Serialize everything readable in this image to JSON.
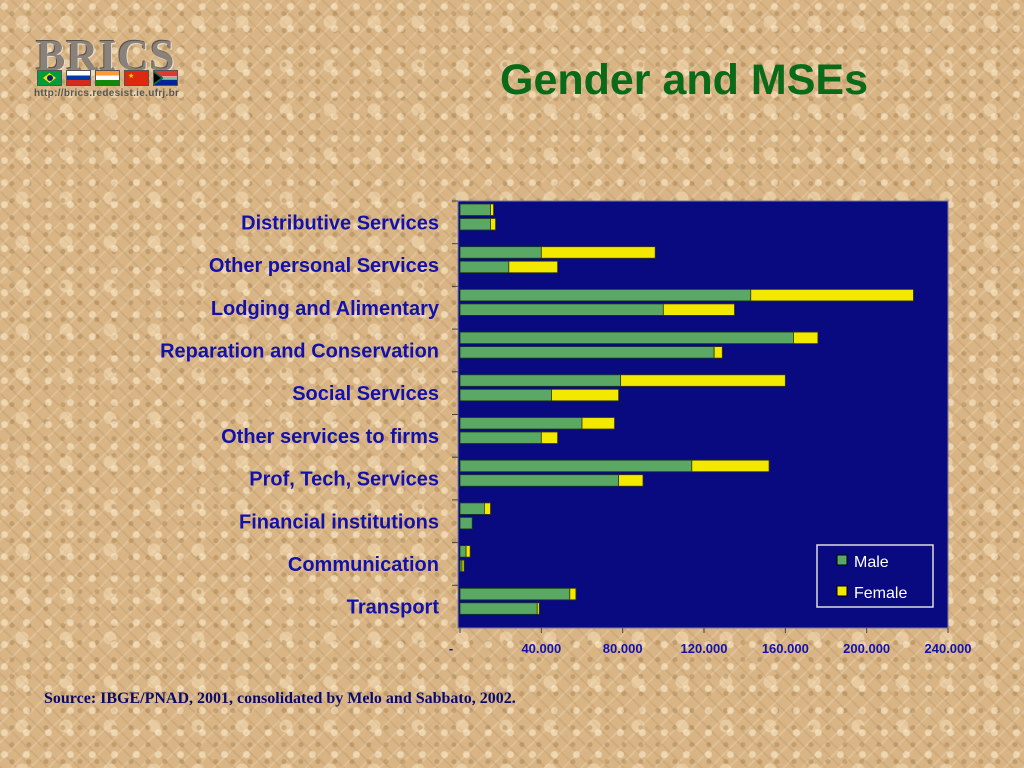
{
  "logo": {
    "text": "BRICS",
    "url": "http://brics.redesist.ie.ufrj.br",
    "flags": [
      {
        "name": "brazil-flag",
        "colors": [
          "#009c3b",
          "#ffdf00",
          "#002776"
        ]
      },
      {
        "name": "russia-flag",
        "colors": [
          "#ffffff",
          "#0039a6",
          "#d52b1e"
        ]
      },
      {
        "name": "india-flag",
        "colors": [
          "#ff9933",
          "#ffffff",
          "#138808"
        ]
      },
      {
        "name": "china-flag",
        "colors": [
          "#de2910",
          "#ffde00"
        ]
      },
      {
        "name": "south-africa-flag",
        "colors": [
          "#007a4d",
          "#ffb612",
          "#de3831",
          "#002395"
        ]
      }
    ]
  },
  "title": "Gender and MSEs",
  "source": "Source: IBGE/PNAD, 2001, consolidated by Melo and Sabbato, 2002.",
  "colors": {
    "plot_bg": "#0a0a80",
    "male": "#5aa864",
    "female": "#f2e800",
    "label": "#1212aa"
  },
  "chart_data": {
    "type": "bar",
    "orientation": "horizontal",
    "stacked": true,
    "categories": [
      "Distributive Services",
      "Other personal Services",
      "Lodging and Alimentary",
      "Reparation and Conservation",
      "Social Services",
      "Other services to firms",
      "Prof, Tech, Services",
      "Financial institutions",
      "Communication",
      "Transport"
    ],
    "bars_per_category": 2,
    "series": [
      {
        "name": "Male",
        "values": [
          [
            15000,
            15000
          ],
          [
            40000,
            24000
          ],
          [
            143000,
            100000
          ],
          [
            164000,
            125000
          ],
          [
            79000,
            45000
          ],
          [
            60000,
            40000
          ],
          [
            114000,
            78000
          ],
          [
            12000,
            6000
          ],
          [
            3000,
            1000
          ],
          [
            54000,
            38000
          ]
        ]
      },
      {
        "name": "Female",
        "values": [
          [
            1500,
            2500
          ],
          [
            56000,
            24000
          ],
          [
            80000,
            35000
          ],
          [
            12000,
            4000
          ],
          [
            81000,
            33000
          ],
          [
            16000,
            8000
          ],
          [
            38000,
            12000
          ],
          [
            3000,
            0
          ],
          [
            2000,
            1000
          ],
          [
            3000,
            1000
          ]
        ]
      }
    ],
    "x_ticks": [
      "-",
      "40.000",
      "80.000",
      "120.000",
      "160.000",
      "200.000",
      "240.000"
    ],
    "xlim": [
      0,
      240000
    ],
    "legend_position": "bottom-right",
    "grid": false
  }
}
